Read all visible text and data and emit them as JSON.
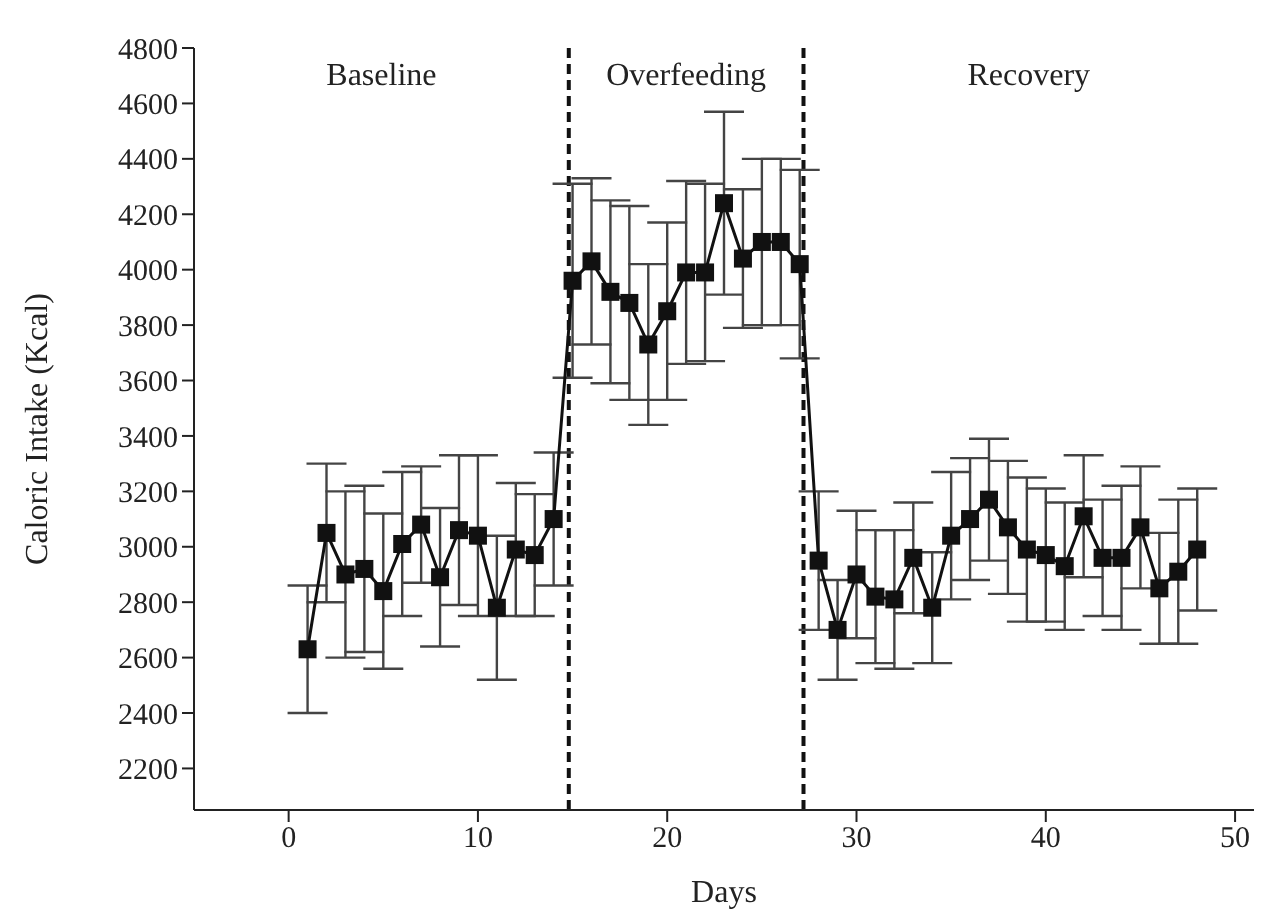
{
  "chart_data": {
    "type": "line",
    "xlabel": "Days",
    "ylabel": "Caloric Intake (Kcal)",
    "x": [
      1,
      2,
      3,
      4,
      5,
      6,
      7,
      8,
      9,
      10,
      11,
      12,
      13,
      14,
      15,
      16,
      17,
      18,
      19,
      20,
      21,
      22,
      23,
      24,
      25,
      26,
      27,
      28,
      29,
      30,
      31,
      32,
      33,
      34,
      35,
      36,
      37,
      38,
      39,
      40,
      41,
      42,
      43,
      44,
      45,
      46,
      47,
      48
    ],
    "series": [
      {
        "color": "#111111",
        "values": [
          2630,
          3050,
          2900,
          2920,
          2840,
          3010,
          3080,
          2890,
          3060,
          3040,
          2780,
          2990,
          2970,
          3100,
          3960,
          4030,
          3920,
          3880,
          3730,
          3850,
          3990,
          3990,
          4240,
          4040,
          4100,
          4100,
          4020,
          2950,
          2700,
          2900,
          2820,
          2810,
          2960,
          2780,
          3040,
          3100,
          3170,
          3070,
          2990,
          2970,
          2930,
          3110,
          2960,
          2960,
          3070,
          2850,
          2910,
          2990
        ],
        "errors": [
          230,
          250,
          300,
          300,
          280,
          260,
          210,
          250,
          270,
          290,
          260,
          240,
          220,
          240,
          350,
          300,
          330,
          350,
          290,
          320,
          330,
          320,
          330,
          250,
          300,
          300,
          340,
          250,
          180,
          230,
          240,
          250,
          200,
          200,
          230,
          220,
          220,
          240,
          260,
          240,
          230,
          220,
          210,
          260,
          220,
          200,
          260,
          220
        ]
      }
    ],
    "xlim": [
      -5,
      51
    ],
    "xticks": [
      0,
      10,
      20,
      30,
      40,
      50
    ],
    "ylim": [
      2050,
      4800
    ],
    "yticks": [
      2200,
      2400,
      2600,
      2800,
      3000,
      3200,
      3400,
      3600,
      3800,
      4000,
      4200,
      4400,
      4600,
      4800
    ],
    "marker": "square",
    "line_style": "solid",
    "grid": false,
    "legend": false,
    "ref_lines": [
      {
        "axis": "x",
        "value": 14.8,
        "line_style": "dashed",
        "color": "#111111"
      },
      {
        "axis": "x",
        "value": 27.2,
        "line_style": "dashed",
        "color": "#111111"
      }
    ],
    "annotations": [
      "Baseline",
      "Overfeeding",
      "Recovery"
    ]
  }
}
